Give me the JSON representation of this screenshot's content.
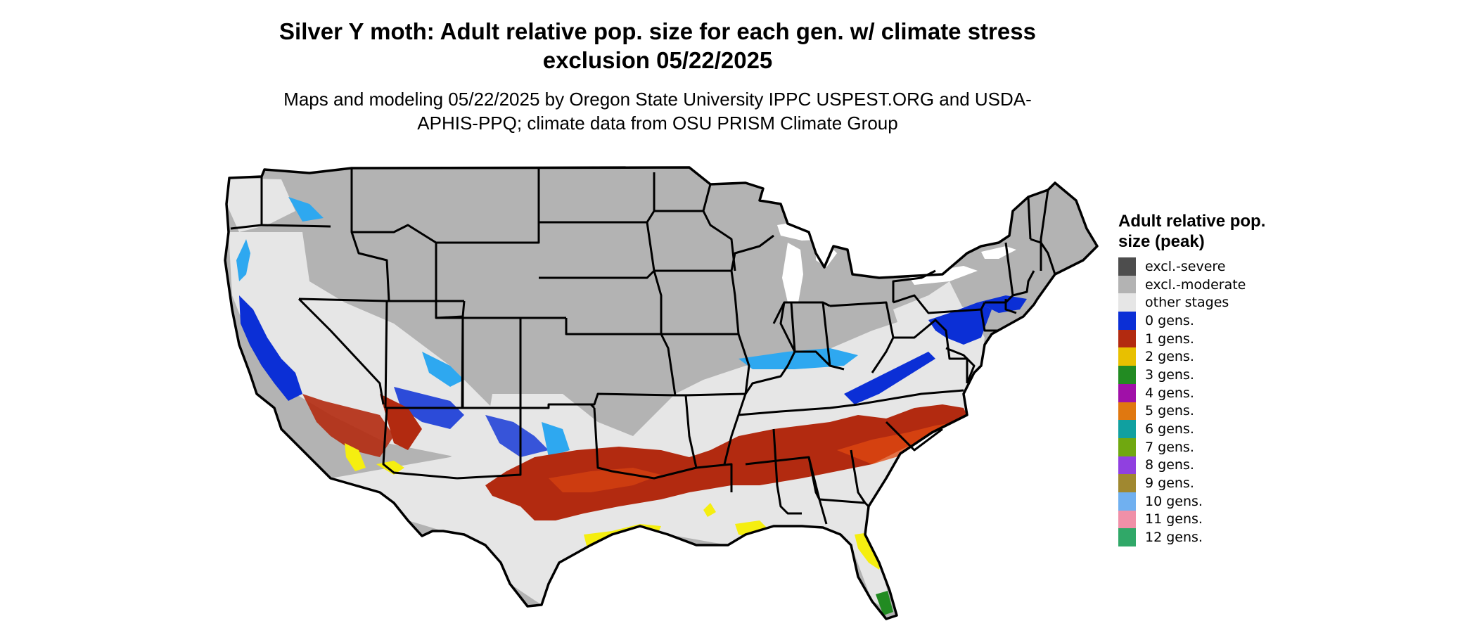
{
  "title": "Silver Y moth: Adult relative pop. size for each gen. w/ climate stress exclusion 05/22/2025",
  "subtitle": "Maps and modeling 05/22/2025 by Oregon State University IPPC USPEST.ORG and USDA-APHIS-PPQ; climate data from OSU PRISM Climate Group",
  "legend": {
    "title": "Adult relative pop. size (peak)",
    "items": [
      {
        "label": "excl.-severe",
        "color": "#4d4d4d"
      },
      {
        "label": "excl.-moderate",
        "color": "#b3b3b3"
      },
      {
        "label": "other stages",
        "color": "#e6e6e6"
      },
      {
        "label": "0 gens.",
        "color": "#0b2fd6"
      },
      {
        "label": "1 gens.",
        "color": "#b22a10"
      },
      {
        "label": "2 gens.",
        "color": "#e8c000"
      },
      {
        "label": "3 gens.",
        "color": "#228b22"
      },
      {
        "label": "4 gens.",
        "color": "#a010a8"
      },
      {
        "label": "5 gens.",
        "color": "#e07810"
      },
      {
        "label": "6 gens.",
        "color": "#10a0a0"
      },
      {
        "label": "7 gens.",
        "color": "#70a810"
      },
      {
        "label": "8 gens.",
        "color": "#9040e0"
      },
      {
        "label": "9 gens.",
        "color": "#a08830"
      },
      {
        "label": "10 gens.",
        "color": "#70b0f0"
      },
      {
        "label": "11 gens.",
        "color": "#f090a8"
      },
      {
        "label": "12 gens.",
        "color": "#30a868"
      }
    ]
  },
  "map": {
    "region": "Contiguous United States",
    "colors": {
      "moderate": "#b3b3b3",
      "other": "#e6e6e6",
      "gen0": "#0b2fd6",
      "gen0_light": "#2ea8f0",
      "gen1": "#b22a10",
      "gen1_bright": "#e04a10",
      "gen2": "#f5ee10",
      "gen3": "#228b22",
      "border": "#000000",
      "water": "#ffffff"
    }
  }
}
